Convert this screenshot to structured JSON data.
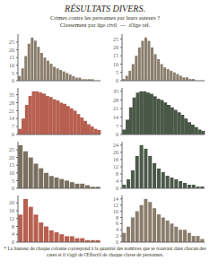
{
  "title": "RÉSULTATS DIVERS.",
  "annotations": [
    "Crimes contre les personnes par leurs auteurs ?\nClassement par âge civil  —  d'âge réf.",
    "* La hauteur de chaque colonne correspond à la quantité des nombres que se trouvant dans chacun des cases et il s'agit de l'Effectif de chaque classe de personnes."
  ],
  "chart_data": [
    {
      "type": "bar",
      "categories": [
        null,
        null,
        null,
        null,
        null,
        null,
        null,
        null,
        null,
        null,
        null,
        null,
        null,
        null,
        null,
        null,
        null,
        null,
        null,
        null,
        null,
        null,
        null,
        null,
        null,
        null
      ],
      "values": [
        3,
        8,
        16,
        24,
        28,
        26,
        22,
        18,
        15,
        13,
        11,
        9,
        8,
        7,
        6,
        5,
        4,
        3,
        2,
        2,
        1,
        1,
        1,
        1,
        0,
        0
      ],
      "color": "#8a7d6b",
      "ylim": [
        0,
        30.24
      ],
      "yticks": [
        0,
        5,
        10,
        15,
        20,
        25
      ],
      "grid": false,
      "tick_labels": "y"
    },
    {
      "type": "bar",
      "categories": [
        null,
        null,
        null,
        null,
        null,
        null,
        null,
        null,
        null,
        null,
        null,
        null,
        null,
        null,
        null,
        null,
        null,
        null,
        null,
        null,
        null,
        null,
        null,
        null,
        null,
        null
      ],
      "values": [
        1,
        3,
        6,
        10,
        15,
        20,
        24,
        26,
        24,
        20,
        16,
        13,
        10,
        8,
        7,
        6,
        5,
        4,
        3,
        2,
        2,
        1,
        1,
        0,
        0,
        0
      ],
      "color": "#8a7d6b",
      "ylim": [
        0,
        28.08
      ],
      "yticks": [
        0,
        5,
        10,
        15,
        20,
        25
      ],
      "grid": false,
      "tick_labels": "y"
    },
    {
      "type": "bar",
      "categories": [
        null,
        null,
        null,
        null,
        null,
        null,
        null,
        null,
        null,
        null,
        null,
        null,
        null,
        null,
        null,
        null,
        null,
        null,
        null,
        null,
        null,
        null,
        null,
        null
      ],
      "values": [
        5,
        14,
        26,
        34,
        38,
        38,
        37,
        36,
        34,
        33,
        31,
        30,
        28,
        27,
        25,
        23,
        21,
        18,
        15,
        12,
        9,
        7,
        5,
        4
      ],
      "color": "#b86050",
      "ylim": [
        0,
        41.04
      ],
      "yticks": [
        0,
        7,
        14,
        21,
        28,
        35
      ],
      "grid": false,
      "tick_labels": "y"
    },
    {
      "type": "bar",
      "categories": [
        null,
        null,
        null,
        null,
        null,
        null,
        null,
        null,
        null,
        null,
        null,
        null,
        null,
        null,
        null,
        null,
        null,
        null,
        null,
        null,
        null,
        null,
        null,
        null
      ],
      "values": [
        4,
        12,
        22,
        30,
        34,
        35,
        35,
        34,
        33,
        31,
        29,
        28,
        26,
        24,
        22,
        20,
        18,
        16,
        13,
        10,
        8,
        6,
        4,
        3
      ],
      "color": "#4a5848",
      "ylim": [
        0,
        37.8
      ],
      "yticks": [
        0,
        7,
        14,
        21,
        28,
        35
      ],
      "grid": false,
      "tick_labels": "y"
    },
    {
      "type": "bar",
      "categories": [
        null,
        null,
        null,
        null,
        null,
        null,
        null,
        null,
        null,
        null,
        null,
        null,
        null,
        null,
        null,
        null
      ],
      "values": [
        28,
        24,
        20,
        16,
        13,
        10,
        8,
        7,
        6,
        5,
        4,
        3,
        3,
        2,
        1,
        1
      ],
      "color": "#7a7060",
      "ylim": [
        0,
        30.24
      ],
      "yticks": [
        0,
        5,
        10,
        15,
        20,
        25
      ],
      "grid": false,
      "tick_labels": "y"
    },
    {
      "type": "bar",
      "categories": [
        null,
        null,
        null,
        null,
        null,
        null,
        null,
        null,
        null,
        null,
        null,
        null,
        null,
        null,
        null,
        null,
        null,
        null,
        null
      ],
      "values": [
        2,
        5,
        10,
        18,
        24,
        22,
        18,
        14,
        11,
        9,
        7,
        6,
        5,
        4,
        3,
        2,
        2,
        1,
        1
      ],
      "color": "#4a5848",
      "ylim": [
        0,
        25.92
      ],
      "yticks": [
        0,
        4,
        8,
        12,
        16,
        20,
        24
      ],
      "grid": false,
      "tick_labels": "y"
    },
    {
      "type": "bar",
      "categories": [
        null,
        null,
        null,
        null,
        null,
        null,
        null,
        null,
        null,
        null,
        null,
        null,
        null,
        null,
        null,
        null
      ],
      "values": [
        14,
        22,
        18,
        14,
        10,
        8,
        6,
        5,
        4,
        3,
        3,
        2,
        2,
        1,
        1,
        1
      ],
      "color": "#b86050",
      "ylim": [
        0,
        23.76
      ],
      "yticks": [
        0,
        4,
        8,
        12,
        16,
        20
      ],
      "grid": false,
      "tick_labels": "y"
    },
    {
      "type": "bar",
      "categories": [
        null,
        null,
        null,
        null,
        null,
        null,
        null,
        null,
        null,
        null,
        null,
        null,
        null,
        null,
        null,
        null,
        null,
        null,
        null
      ],
      "values": [
        3,
        5,
        8,
        10,
        12,
        14,
        13,
        11,
        9,
        8,
        7,
        6,
        5,
        4,
        4,
        3,
        2,
        2,
        1
      ],
      "color": "#8a7d6b",
      "ylim": [
        0,
        15.12
      ],
      "yticks": [
        0,
        2,
        4,
        6,
        8,
        10,
        12,
        14
      ],
      "grid": false,
      "tick_labels": "y"
    }
  ]
}
